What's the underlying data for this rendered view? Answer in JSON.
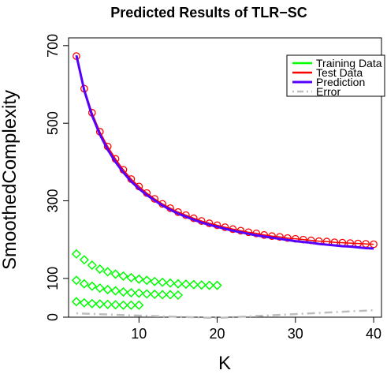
{
  "chart_data": {
    "type": "line",
    "title": "Predicted Results of TLR−SC",
    "xlabel": "K",
    "ylabel": "SmoothedComplexity",
    "xlim": [
      1,
      41
    ],
    "ylim": [
      0,
      720
    ],
    "x_ticks": [
      10,
      20,
      30,
      40
    ],
    "y_ticks": [
      0,
      100,
      300,
      500,
      700
    ],
    "legend_position": "top-right",
    "colors": {
      "training": "#00ff00",
      "test": "#ff0000",
      "prediction": "#5500ff",
      "error": "#bebebe"
    },
    "series": [
      {
        "name": "Training Data",
        "marker": "diamond",
        "color": "#00ff00",
        "groups": [
          {
            "x": [
              2,
              3,
              4,
              5,
              6,
              7,
              8,
              9,
              10,
              11,
              12,
              13,
              14,
              15,
              16,
              17,
              18,
              19,
              20
            ],
            "y": [
              163,
              148,
              134,
              124,
              117,
              111,
              106,
              102,
              98,
              95,
              92,
              90,
              88,
              86,
              85,
              84,
              83,
              82,
              82
            ]
          },
          {
            "x": [
              2,
              3,
              4,
              5,
              6,
              7,
              8,
              9,
              10,
              11,
              12,
              13,
              14,
              15
            ],
            "y": [
              95,
              86,
              80,
              75,
              71,
              68,
              65,
              63,
              62,
              60,
              59,
              58,
              58,
              57
            ]
          },
          {
            "x": [
              2,
              3,
              4,
              5,
              6,
              7,
              8,
              9,
              10
            ],
            "y": [
              40,
              37,
              35,
              34,
              33,
              32,
              31,
              31,
              31
            ]
          }
        ]
      },
      {
        "name": "Test Data",
        "marker": "circle",
        "color": "#ff0000",
        "x": [
          2,
          3,
          4,
          5,
          6,
          7,
          8,
          9,
          10,
          11,
          12,
          13,
          14,
          15,
          16,
          17,
          18,
          19,
          20,
          21,
          22,
          23,
          24,
          25,
          26,
          27,
          28,
          29,
          30,
          31,
          32,
          33,
          34,
          35,
          36,
          37,
          38,
          39,
          40
        ],
        "y": [
          673,
          589,
          527,
          478,
          440,
          408,
          380,
          356,
          337,
          320,
          305,
          292,
          281,
          271,
          263,
          255,
          248,
          242,
          237,
          232,
          227,
          223,
          219,
          216,
          212,
          209,
          207,
          204,
          202,
          200,
          198,
          196,
          195,
          193,
          192,
          191,
          190,
          189,
          188
        ]
      },
      {
        "name": "Prediction",
        "color": "#5500ff",
        "x": [
          2,
          3,
          4,
          5,
          6,
          7,
          8,
          9,
          10,
          11,
          12,
          13,
          14,
          15,
          16,
          17,
          18,
          19,
          20,
          21,
          22,
          23,
          24,
          25,
          26,
          27,
          28,
          29,
          30,
          31,
          32,
          33,
          34,
          35,
          36,
          37,
          38,
          39,
          40
        ],
        "y": [
          675,
          585,
          520,
          471,
          432,
          400,
          373,
          350,
          331,
          315,
          301,
          288,
          277,
          267,
          259,
          251,
          244,
          238,
          233,
          228,
          223,
          219,
          215,
          211,
          208,
          205,
          202,
          199,
          196,
          194,
          192,
          189,
          187,
          185,
          183,
          182,
          180,
          178,
          177
        ]
      },
      {
        "name": "Error",
        "style": "dashdot",
        "color": "#bebebe",
        "x": [
          2,
          10,
          20,
          30,
          40
        ],
        "y": [
          10,
          4,
          -2,
          8,
          18
        ]
      }
    ]
  }
}
